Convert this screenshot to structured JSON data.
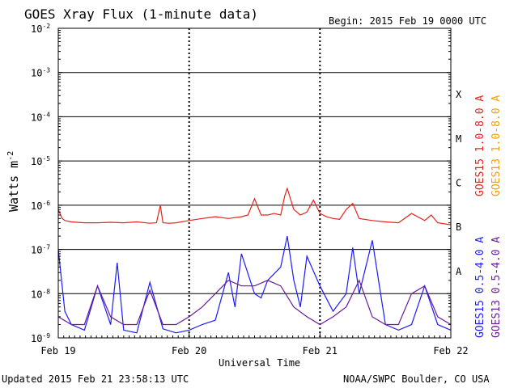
{
  "header": {
    "title": "GOES Xray Flux (1-minute data)",
    "begin": "Begin:  2015 Feb 19 0000 UTC"
  },
  "footer": {
    "updated": "Updated 2015 Feb 21 23:58:13 UTC",
    "credit": "NOAA/SWPC Boulder, CO USA"
  },
  "chart_data": {
    "type": "line",
    "title": "GOES Xray Flux (1-minute data)",
    "xlabel": "Universal Time",
    "ylabel": "Watts m",
    "ylabel_sup": "-2",
    "yscale": "log",
    "ylim": [
      1e-09,
      0.01
    ],
    "xlim": [
      "2015-02-19",
      "2015-02-22"
    ],
    "x_ticks": [
      "Feb 19",
      "Feb 20",
      "Feb 21",
      "Feb 22"
    ],
    "y_ticks": [
      {
        "base": "10",
        "exp": "-9"
      },
      {
        "base": "10",
        "exp": "-8"
      },
      {
        "base": "10",
        "exp": "-7"
      },
      {
        "base": "10",
        "exp": "-6"
      },
      {
        "base": "10",
        "exp": "-5"
      },
      {
        "base": "10",
        "exp": "-4"
      },
      {
        "base": "10",
        "exp": "-3"
      },
      {
        "base": "10",
        "exp": "-2"
      }
    ],
    "flare_classes": [
      "X",
      "M",
      "C",
      "B",
      "A"
    ],
    "grid": true,
    "legend_position": "right (vertical)",
    "series": [
      {
        "name": "GOES15 1.0-8.0 A",
        "color": "#e8231c",
        "x": [
          0,
          0.03,
          0.05,
          0.1,
          0.2,
          0.3,
          0.4,
          0.5,
          0.6,
          0.7,
          0.75,
          0.78,
          0.8,
          0.85,
          0.9,
          1.0,
          1.1,
          1.2,
          1.3,
          1.4,
          1.45,
          1.5,
          1.55,
          1.6,
          1.65,
          1.7,
          1.73,
          1.75,
          1.8,
          1.85,
          1.9,
          1.95,
          2.0,
          2.05,
          2.1,
          2.15,
          2.2,
          2.25,
          2.3,
          2.4,
          2.5,
          2.6,
          2.7,
          2.8,
          2.85,
          2.9,
          3.0
        ],
        "values": [
          8e-07,
          5e-07,
          4.5e-07,
          4.2e-07,
          4e-07,
          4e-07,
          4.1e-07,
          4e-07,
          4.2e-07,
          3.9e-07,
          4e-07,
          1e-06,
          4e-07,
          3.9e-07,
          4e-07,
          4.5e-07,
          5e-07,
          5.5e-07,
          5e-07,
          5.5e-07,
          6e-07,
          1.4e-06,
          6e-07,
          6e-07,
          6.5e-07,
          6e-07,
          1.6e-06,
          2.4e-06,
          8e-07,
          6e-07,
          7e-07,
          1.3e-06,
          6.5e-07,
          5.5e-07,
          5e-07,
          4.8e-07,
          8e-07,
          1.1e-06,
          5e-07,
          4.5e-07,
          4.2e-07,
          4e-07,
          6.5e-07,
          4.5e-07,
          6e-07,
          4e-07,
          3.6e-07
        ]
      },
      {
        "name": "GOES13 1.0-8.0 A",
        "color": "#f0a000",
        "x": [],
        "values": []
      },
      {
        "name": "GOES15 0.5-4.0 A",
        "color": "#1a1aff",
        "x": [
          0,
          0.05,
          0.1,
          0.2,
          0.3,
          0.4,
          0.45,
          0.5,
          0.6,
          0.7,
          0.8,
          0.9,
          1.0,
          1.1,
          1.2,
          1.3,
          1.35,
          1.4,
          1.5,
          1.55,
          1.6,
          1.7,
          1.75,
          1.8,
          1.85,
          1.9,
          2.0,
          2.1,
          2.2,
          2.25,
          2.3,
          2.4,
          2.5,
          2.6,
          2.7,
          2.8,
          2.9,
          3.0
        ],
        "values": [
          1e-07,
          4e-09,
          2e-09,
          1.5e-09,
          1.5e-08,
          2e-09,
          5e-08,
          1.5e-09,
          1.3e-09,
          1.8e-08,
          1.6e-09,
          1.3e-09,
          1.5e-09,
          2e-09,
          2.5e-09,
          3e-08,
          5e-09,
          8e-08,
          1e-08,
          8e-09,
          2e-08,
          4e-08,
          2e-07,
          2e-08,
          5e-09,
          7e-08,
          1.5e-08,
          4e-09,
          1e-08,
          1.1e-07,
          1e-08,
          1.6e-07,
          2e-09,
          1.5e-09,
          2e-09,
          1.5e-08,
          2e-09,
          1.5e-09
        ]
      },
      {
        "name": "GOES13 0.5-4.0 A",
        "color": "#6a1b9a",
        "x": [
          0,
          0.1,
          0.2,
          0.3,
          0.4,
          0.5,
          0.6,
          0.7,
          0.8,
          0.9,
          1.0,
          1.1,
          1.2,
          1.3,
          1.4,
          1.5,
          1.6,
          1.7,
          1.8,
          1.9,
          2.0,
          2.1,
          2.2,
          2.3,
          2.4,
          2.5,
          2.6,
          2.7,
          2.8,
          2.9,
          3.0
        ],
        "values": [
          3e-09,
          2e-09,
          2e-09,
          1.5e-08,
          3e-09,
          2e-09,
          2e-09,
          1.2e-08,
          2e-09,
          2e-09,
          3e-09,
          5e-09,
          1e-08,
          2e-08,
          1.5e-08,
          1.5e-08,
          2e-08,
          1.5e-08,
          5e-09,
          3e-09,
          2e-09,
          3e-09,
          5e-09,
          2e-08,
          3e-09,
          2e-09,
          2e-09,
          1e-08,
          1.5e-08,
          3e-09,
          2e-09
        ]
      }
    ]
  }
}
